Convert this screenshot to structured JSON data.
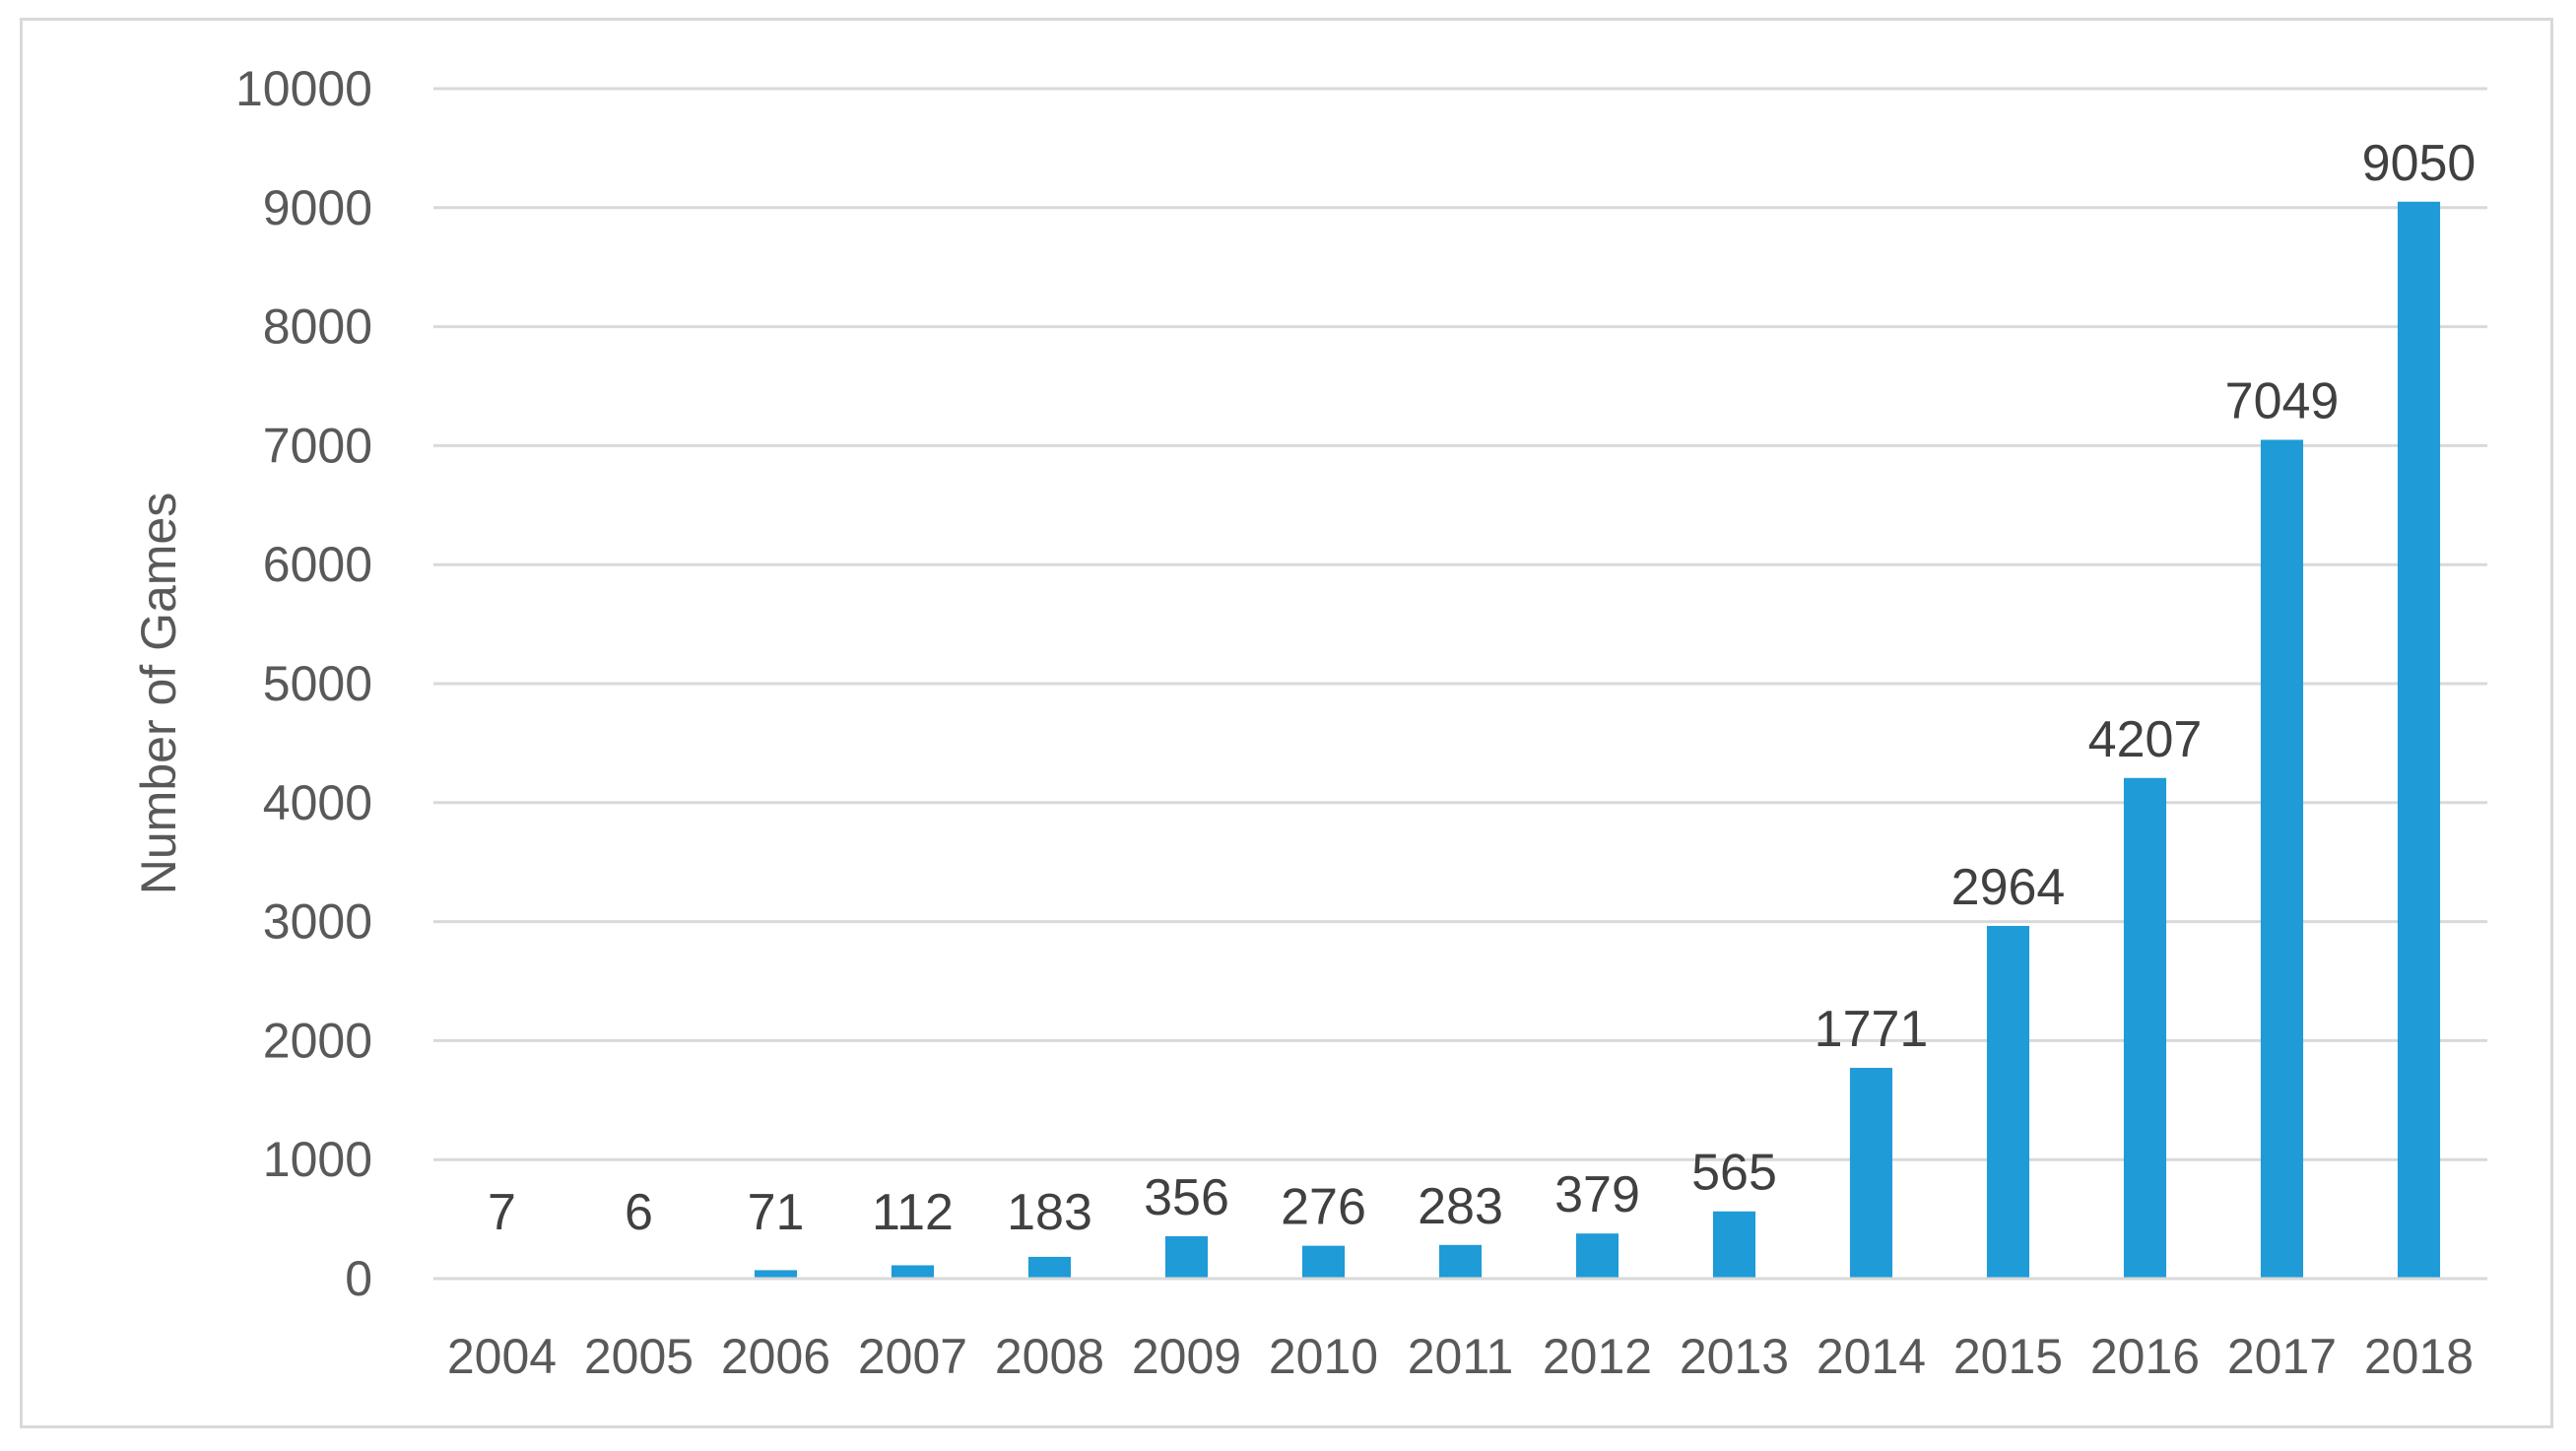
{
  "chart_data": {
    "type": "bar",
    "title": "",
    "xlabel": "",
    "ylabel": "Number  of Games",
    "categories": [
      "2004",
      "2005",
      "2006",
      "2007",
      "2008",
      "2009",
      "2010",
      "2011",
      "2012",
      "2013",
      "2014",
      "2015",
      "2016",
      "2017",
      "2018"
    ],
    "values": [
      7,
      6,
      71,
      112,
      183,
      356,
      276,
      283,
      379,
      565,
      1771,
      2964,
      4207,
      7049,
      9050
    ],
    "data_labels": [
      "7",
      "6",
      "71",
      "112",
      "183",
      "356",
      "276",
      "283",
      "379",
      "565",
      "1771",
      "2964",
      "4207",
      "7049",
      "9050"
    ],
    "yticks": [
      "0",
      "1000",
      "2000",
      "3000",
      "4000",
      "5000",
      "6000",
      "7000",
      "8000",
      "9000",
      "10000"
    ],
    "ylim": [
      0,
      10000
    ],
    "grid": true,
    "legend": "none",
    "colors": {
      "bar": "#1f9bd7",
      "grid": "#d9d9d9",
      "axis": "#d9d9d9",
      "border": "#d9d9d9"
    }
  }
}
